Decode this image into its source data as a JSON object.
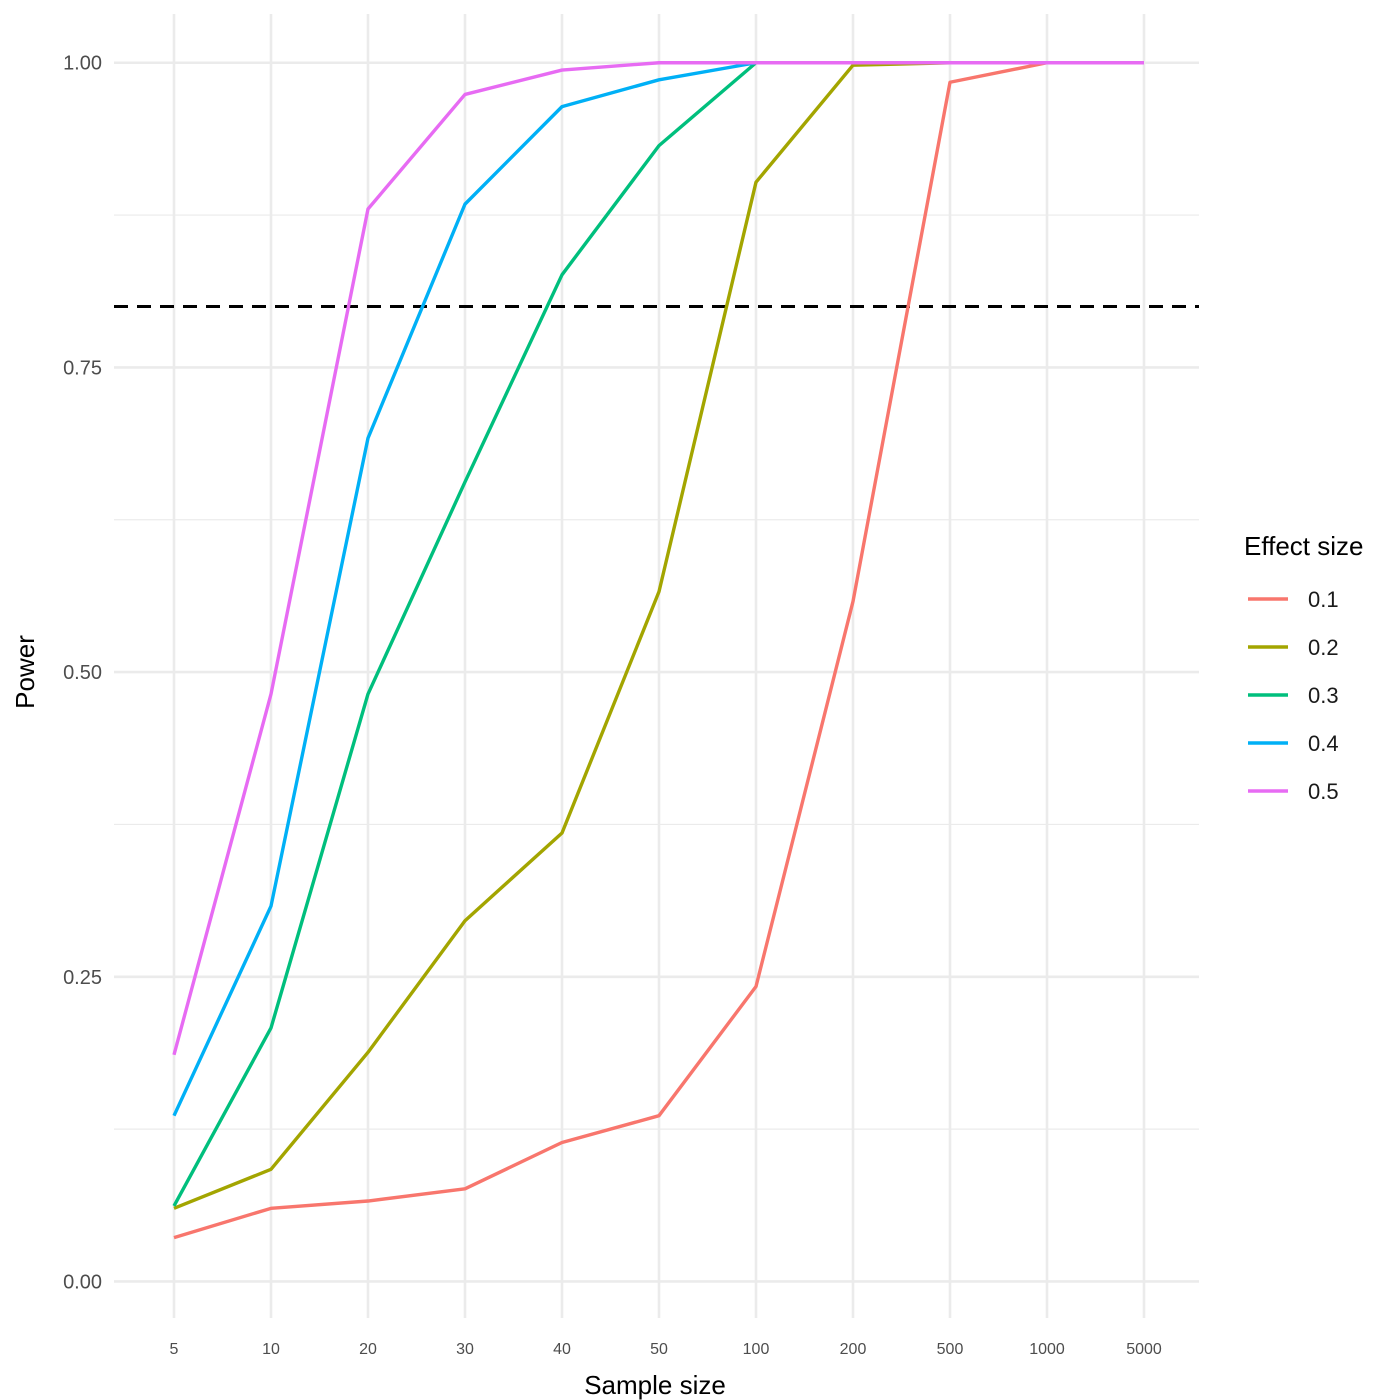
{
  "chart_data": {
    "type": "line",
    "title": "",
    "xlabel": "Sample size",
    "ylabel": "Power",
    "x_scale": "categorical",
    "categories": [
      "5",
      "10",
      "20",
      "30",
      "40",
      "50",
      "100",
      "200",
      "500",
      "1000",
      "5000"
    ],
    "y_ticks": [
      "0.00",
      "0.25",
      "0.50",
      "0.75",
      "1.00"
    ],
    "ylim": [
      -0.03,
      1.04
    ],
    "grid": true,
    "reference_line": {
      "y": 0.8,
      "style": "dashed",
      "color": "#000000"
    },
    "legend": {
      "title": "Effect size",
      "position": "right"
    },
    "series": [
      {
        "name": "0.1",
        "color": "#F8766D",
        "values": [
          0.036,
          0.06,
          0.066,
          0.076,
          0.114,
          0.136,
          0.242,
          0.558,
          0.984,
          1.0,
          1.0
        ]
      },
      {
        "name": "0.2",
        "color": "#A3A500",
        "values": [
          0.06,
          0.092,
          0.188,
          0.296,
          0.368,
          0.566,
          0.902,
          0.998,
          1.0,
          1.0,
          1.0
        ]
      },
      {
        "name": "0.3",
        "color": "#00BF7D",
        "values": [
          0.062,
          0.208,
          0.482,
          0.656,
          0.826,
          0.932,
          1.0,
          1.0,
          1.0,
          1.0,
          1.0
        ]
      },
      {
        "name": "0.4",
        "color": "#00B0F6",
        "values": [
          0.136,
          0.308,
          0.692,
          0.884,
          0.964,
          0.986,
          1.0,
          1.0,
          1.0,
          1.0,
          1.0
        ]
      },
      {
        "name": "0.5",
        "color": "#E76BF3",
        "values": [
          0.186,
          0.482,
          0.88,
          0.974,
          0.994,
          1.0,
          1.0,
          1.0,
          1.0,
          1.0,
          1.0
        ]
      }
    ]
  }
}
